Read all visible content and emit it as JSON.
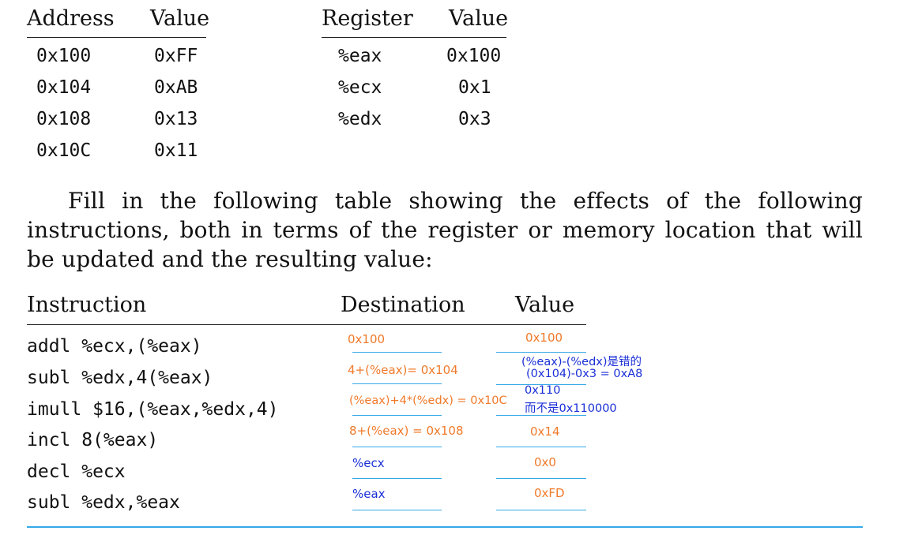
{
  "memory_table": {
    "headers": [
      "Address",
      "Value"
    ],
    "rows": [
      [
        "0x100",
        "0xFF"
      ],
      [
        "0x104",
        "0xAB"
      ],
      [
        "0x108",
        "0x13"
      ],
      [
        "0x10C",
        "0x11"
      ]
    ]
  },
  "register_table": {
    "headers": [
      "Register",
      "Value"
    ],
    "rows": [
      [
        "%eax",
        "0x100"
      ],
      [
        "%ecx",
        "0x1"
      ],
      [
        "%edx",
        "0x3"
      ]
    ]
  },
  "paragraph": "Fill in the following table showing the effects of the following instructions, both in terms of the register or memory location that will be updated and the resulting value:",
  "instruction_table": {
    "headers": [
      "Instruction",
      "Destination",
      "Value"
    ],
    "rows": [
      {
        "instruction": "addl %ecx,(%eax)",
        "destination": "0x100",
        "value": "0x100"
      },
      {
        "instruction": "subl %edx,4(%eax)",
        "destination": "4+(%eax)= 0x104",
        "value_line1": "(%eax)-(%edx)是错的",
        "value_line2": "(0x104)-0x3 = 0xA8"
      },
      {
        "instruction": "imull $16,(%eax,%edx,4)",
        "destination": "(%eax)+4*(%edx) = 0x10C",
        "value_line1": "0x110",
        "value_line2": "而不是0x110000"
      },
      {
        "instruction": "incl 8(%eax)",
        "destination": "8+(%eax) = 0x108",
        "value": "0x14"
      },
      {
        "instruction": "decl %ecx",
        "destination": "%ecx",
        "value": "0x0"
      },
      {
        "instruction": "subl %edx,%eax",
        "destination": "%eax",
        "value": "0xFD"
      }
    ]
  },
  "colors": {
    "handwritten_orange": "#f07a2a",
    "handwritten_blue": "#1a2fd6",
    "answer_underline": "#35a8e8"
  }
}
